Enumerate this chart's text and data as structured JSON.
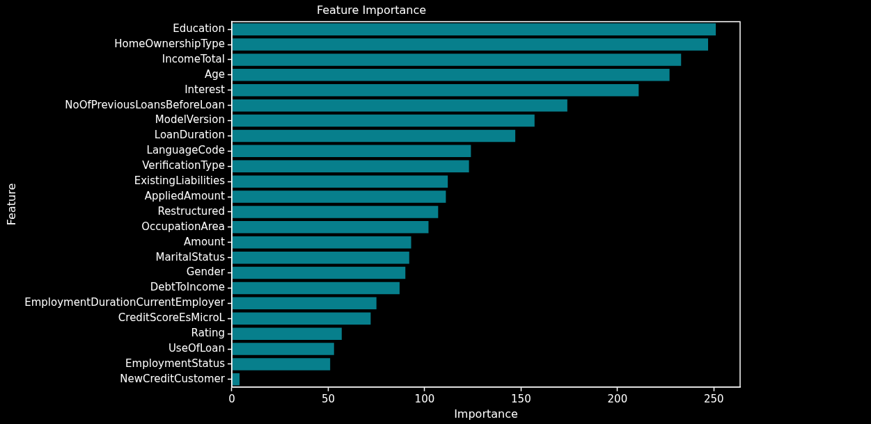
{
  "chart_data": {
    "type": "bar",
    "orientation": "horizontal",
    "title": "Feature Importance",
    "xlabel": "Importance",
    "ylabel": "Feature",
    "categories": [
      "Education",
      "HomeOwnershipType",
      "IncomeTotal",
      "Age",
      "Interest",
      "NoOfPreviousLoansBeforeLoan",
      "ModelVersion",
      "LoanDuration",
      "LanguageCode",
      "VerificationType",
      "ExistingLiabilities",
      "AppliedAmount",
      "Restructured",
      "OccupationArea",
      "Amount",
      "MaritalStatus",
      "Gender",
      "DebtToIncome",
      "EmploymentDurationCurrentEmployer",
      "CreditScoreEsMicroL",
      "Rating",
      "UseOfLoan",
      "EmploymentStatus",
      "NewCreditCustomer"
    ],
    "values": [
      251,
      247,
      233,
      227,
      211,
      174,
      157,
      147,
      124,
      123,
      112,
      111,
      107,
      102,
      93,
      92,
      90,
      87,
      75,
      72,
      57,
      53,
      51,
      4
    ],
    "color": "#077f8c",
    "xlim": [
      0,
      263.6
    ],
    "xticks": [
      0,
      50,
      100,
      150,
      200,
      250
    ]
  }
}
